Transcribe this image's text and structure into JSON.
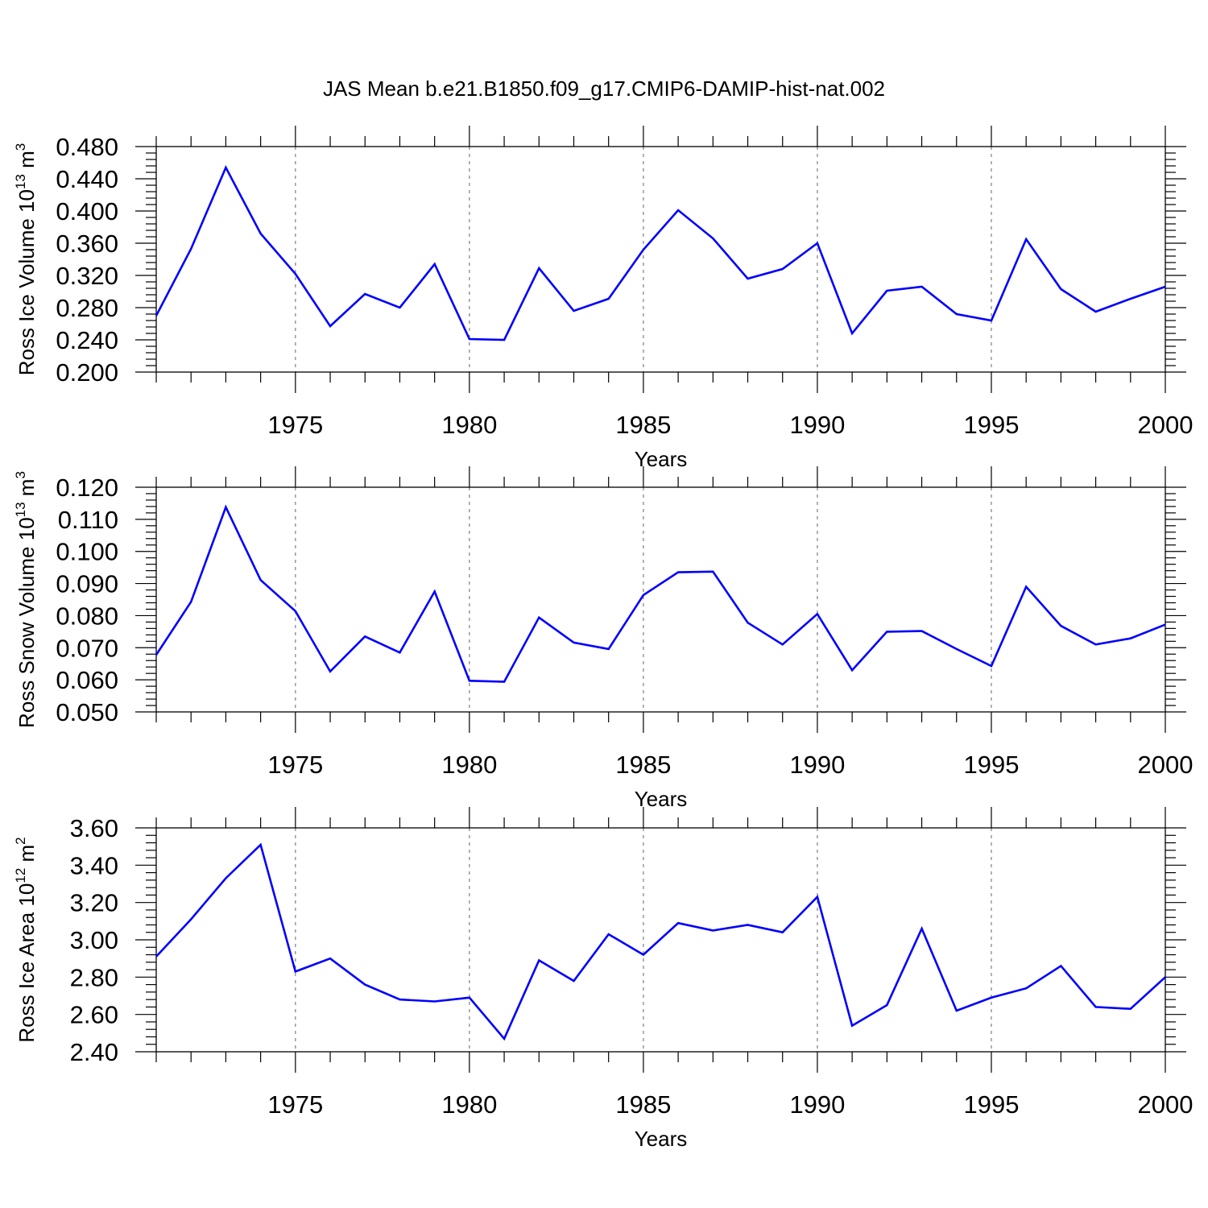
{
  "title": "JAS Mean b.e21.B1850.f09_g17.CMIP6-DAMIP-hist-nat.002",
  "colors": {
    "series": "#0000ff",
    "axis": "#000000",
    "grid": "#888888"
  },
  "chart_data": [
    {
      "type": "line",
      "ylabel": {
        "main": "Ross Ice Volume 10",
        "exp": "13",
        "unit": " m",
        "unit_exp": "3"
      },
      "xlabel": "Years",
      "xlim": [
        1971,
        2000
      ],
      "ylim": [
        0.2,
        0.48
      ],
      "xticks": [
        "1975",
        "1980",
        "1985",
        "1990",
        "1995",
        "2000"
      ],
      "yticks": [
        "0.200",
        "0.240",
        "0.280",
        "0.320",
        "0.360",
        "0.400",
        "0.440",
        "0.480"
      ],
      "grid": "vertical dashed at major x ticks",
      "x": [
        1971,
        1972,
        1973,
        1974,
        1975,
        1976,
        1977,
        1978,
        1979,
        1980,
        1981,
        1982,
        1983,
        1984,
        1985,
        1986,
        1987,
        1988,
        1989,
        1990,
        1991,
        1992,
        1993,
        1994,
        1995,
        1996,
        1997,
        1998,
        1999,
        2000
      ],
      "values": [
        0.27,
        0.353,
        0.454,
        0.372,
        0.322,
        0.257,
        0.297,
        0.28,
        0.334,
        0.241,
        0.24,
        0.329,
        0.276,
        0.291,
        0.352,
        0.401,
        0.366,
        0.316,
        0.328,
        0.36,
        0.248,
        0.301,
        0.306,
        0.272,
        0.264,
        0.365,
        0.303,
        0.275,
        0.291,
        0.306
      ]
    },
    {
      "type": "line",
      "ylabel": {
        "main": "Ross Snow Volume 10",
        "exp": "13",
        "unit": " m",
        "unit_exp": "3"
      },
      "xlabel": "Years",
      "xlim": [
        1971,
        2000
      ],
      "ylim": [
        0.05,
        0.12
      ],
      "xticks": [
        "1975",
        "1980",
        "1985",
        "1990",
        "1995",
        "2000"
      ],
      "yticks": [
        "0.050",
        "0.060",
        "0.070",
        "0.080",
        "0.090",
        "0.100",
        "0.110",
        "0.120"
      ],
      "grid": "vertical dashed at major x ticks",
      "x": [
        1971,
        1972,
        1973,
        1974,
        1975,
        1976,
        1977,
        1978,
        1979,
        1980,
        1981,
        1982,
        1983,
        1984,
        1985,
        1986,
        1987,
        1988,
        1989,
        1990,
        1991,
        1992,
        1993,
        1994,
        1995,
        1996,
        1997,
        1998,
        1999,
        2000
      ],
      "values": [
        0.0678,
        0.0843,
        0.1138,
        0.0911,
        0.0814,
        0.0626,
        0.0735,
        0.0685,
        0.0875,
        0.0597,
        0.0594,
        0.0794,
        0.0716,
        0.0696,
        0.0864,
        0.0935,
        0.0937,
        0.0778,
        0.071,
        0.0805,
        0.063,
        0.075,
        0.0752,
        0.0696,
        0.0643,
        0.089,
        0.0768,
        0.071,
        0.0729,
        0.0772
      ]
    },
    {
      "type": "line",
      "ylabel": {
        "main": "Ross Ice Area 10",
        "exp": "12",
        "unit": " m",
        "unit_exp": "2"
      },
      "xlabel": "Years",
      "xlim": [
        1971,
        2000
      ],
      "ylim": [
        2.4,
        3.6
      ],
      "xticks": [
        "1975",
        "1980",
        "1985",
        "1990",
        "1995",
        "2000"
      ],
      "yticks": [
        "2.40",
        "2.60",
        "2.80",
        "3.00",
        "3.20",
        "3.40",
        "3.60"
      ],
      "grid": "vertical dashed at major x ticks",
      "x": [
        1971,
        1972,
        1973,
        1974,
        1975,
        1976,
        1977,
        1978,
        1979,
        1980,
        1981,
        1982,
        1983,
        1984,
        1985,
        1986,
        1987,
        1988,
        1989,
        1990,
        1991,
        1992,
        1993,
        1994,
        1995,
        1996,
        1997,
        1998,
        1999,
        2000
      ],
      "values": [
        2.91,
        3.11,
        3.33,
        3.51,
        2.83,
        2.9,
        2.76,
        2.68,
        2.67,
        2.69,
        2.47,
        2.89,
        2.78,
        3.03,
        2.92,
        3.09,
        3.05,
        3.08,
        3.04,
        3.23,
        2.54,
        2.65,
        3.06,
        2.62,
        2.69,
        2.74,
        2.86,
        2.64,
        2.63,
        2.8
      ]
    }
  ]
}
